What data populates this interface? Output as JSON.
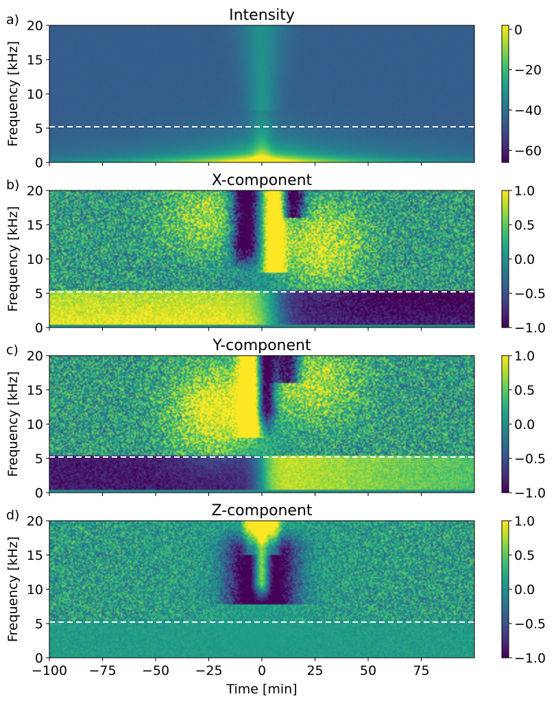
{
  "chart_data": {
    "type": "heatmap",
    "x_range": [
      -100,
      100
    ],
    "x_ticks": [
      -100,
      -75,
      -50,
      -25,
      0,
      25,
      50,
      75
    ],
    "x_tick_labels": [
      "−100",
      "−75",
      "−50",
      "−25",
      "0",
      "25",
      "50",
      "75"
    ],
    "xlabel": "Time [min]",
    "ylabel": "Frequency [kHz]",
    "ylim": [
      0,
      20
    ],
    "y_ticks": [
      0,
      5,
      10,
      15,
      20
    ],
    "y_tick_labels": [
      "0",
      "5",
      "10",
      "15",
      "20"
    ],
    "reference_line": {
      "frequency_khz": 5.2,
      "style": "dashed",
      "color": "#ffffff"
    },
    "colormap": "viridis",
    "panels": [
      {
        "label": "a)",
        "title": "Intensity",
        "kind": "intensity",
        "cbar_range": [
          -66,
          2
        ],
        "cbar_ticks": [
          0,
          -20,
          -40,
          -60
        ],
        "cbar_tick_labels": [
          "0",
          "−20",
          "−40",
          "−60"
        ]
      },
      {
        "label": "b)",
        "title": "X-component",
        "kind": "x",
        "cbar_range": [
          -1,
          1
        ],
        "cbar_ticks": [
          1,
          0.5,
          0,
          -0.5,
          -1
        ],
        "cbar_tick_labels": [
          "1.0",
          "0.5",
          "0.0",
          "−0.5",
          "−1.0"
        ]
      },
      {
        "label": "c)",
        "title": "Y-component",
        "kind": "y",
        "cbar_range": [
          -1,
          1
        ],
        "cbar_ticks": [
          1,
          0.5,
          0,
          -0.5,
          -1
        ],
        "cbar_tick_labels": [
          "1.0",
          "0.5",
          "0.0",
          "−0.5",
          "−1.0"
        ]
      },
      {
        "label": "d)",
        "title": "Z-component",
        "kind": "z",
        "cbar_range": [
          -1,
          1
        ],
        "cbar_ticks": [
          1,
          0.5,
          0,
          -0.5,
          -1
        ],
        "cbar_tick_labels": [
          "1.0",
          "0.5",
          "0.0",
          "−0.5",
          "−1.0"
        ]
      }
    ]
  }
}
